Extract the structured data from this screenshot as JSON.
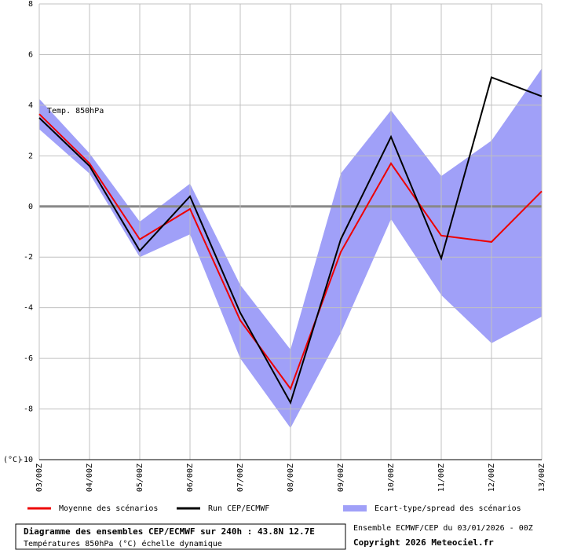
{
  "chart_data": {
    "type": "line",
    "annotation": "Temp. 850hPa",
    "y_label": "(°C)",
    "categories": [
      "03/00Z",
      "04/00Z",
      "05/00Z",
      "06/00Z",
      "07/00Z",
      "08/00Z",
      "09/00Z",
      "10/00Z",
      "11/00Z",
      "12/00Z",
      "13/00Z"
    ],
    "band": {
      "name": "Ecart-type/spread des scénarios",
      "color": "#a0a0f8",
      "upper": [
        4.25,
        2.1,
        -0.6,
        0.9,
        -3.1,
        -5.65,
        1.3,
        3.8,
        1.2,
        2.6,
        5.45
      ],
      "lower": [
        3.05,
        1.3,
        -2.0,
        -1.1,
        -6.0,
        -8.75,
        -5.0,
        -0.5,
        -3.5,
        -5.4,
        -4.35
      ]
    },
    "series": [
      {
        "name": "Moyenne des scénarios",
        "color": "#ee0000",
        "values": [
          3.65,
          1.7,
          -1.3,
          -0.1,
          -4.5,
          -7.2,
          -1.8,
          1.7,
          -1.15,
          -1.4,
          0.6
        ]
      },
      {
        "name": "Run CEP/ECMWF",
        "color": "#000000",
        "values": [
          3.5,
          1.6,
          -1.75,
          0.4,
          -4.2,
          -7.75,
          -1.3,
          2.75,
          -2.05,
          5.1,
          4.35
        ]
      }
    ],
    "ylim": [
      -10,
      8
    ],
    "yticks": [
      -10,
      -8,
      -6,
      -4,
      -2,
      0,
      2,
      4,
      6,
      8
    ],
    "grid": true,
    "footer": {
      "title": "Diagramme des ensembles CEP/ECMWF sur 240h : 43.8N 12.7E",
      "subtitle": "Températures 850hPa (°C) échelle dynamique",
      "run": "Ensemble ECMWF/CEP du 03/01/2026 - 00Z",
      "copyright": "Copyright 2026 Meteociel.fr"
    }
  }
}
